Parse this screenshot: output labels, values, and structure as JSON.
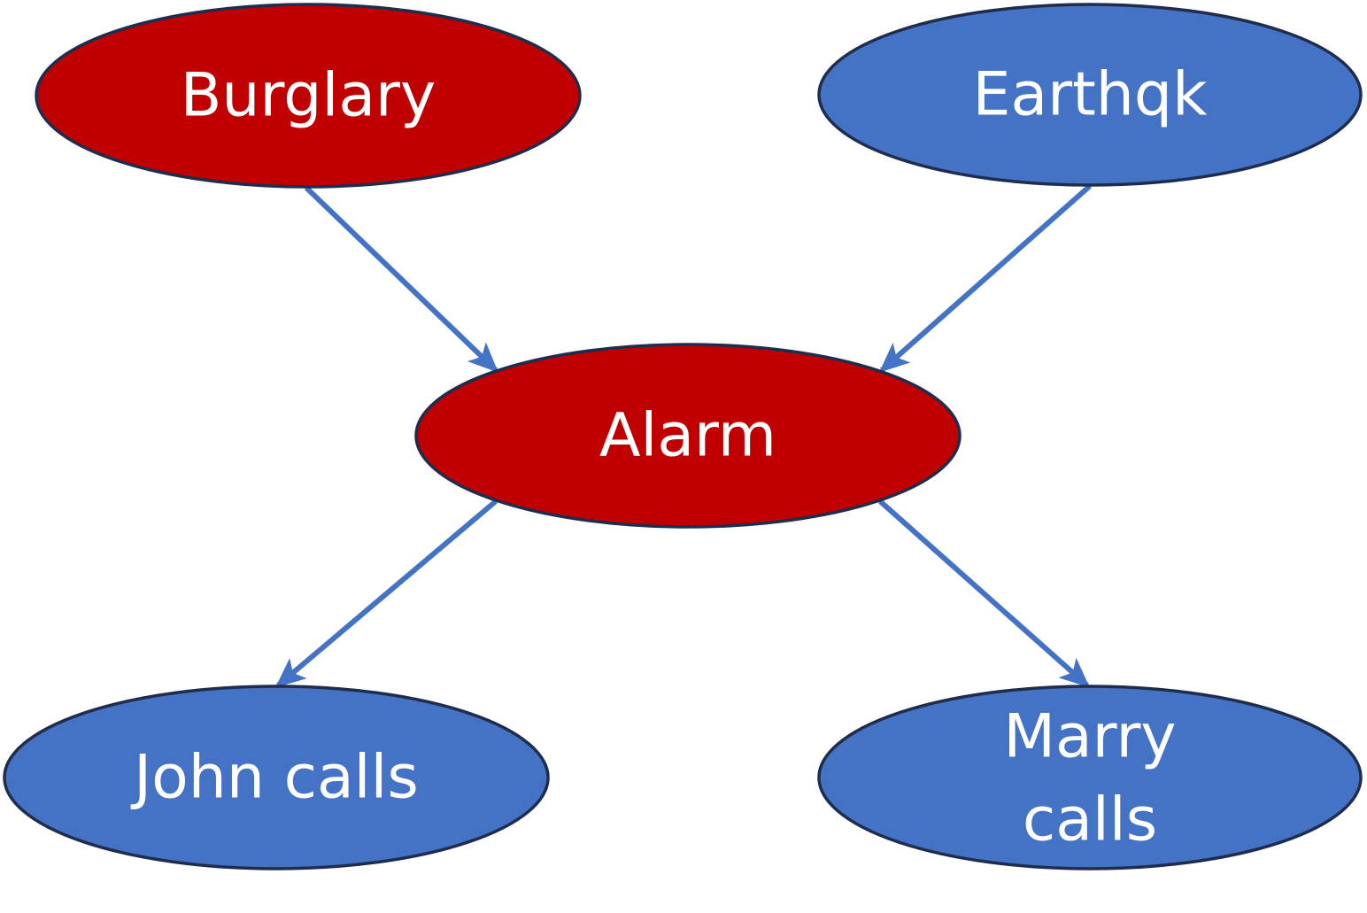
{
  "colors": {
    "observed": "#c00000",
    "unobserved": "#4472c4",
    "edge": "#4472c4",
    "outline": "#1f2d4d",
    "label": "#ffffff"
  },
  "nodes": {
    "burglary": {
      "label": "Burglary",
      "state": "observed"
    },
    "earthquake": {
      "label": "Earthqk",
      "state": "unobserved"
    },
    "alarm": {
      "label": "Alarm",
      "state": "observed"
    },
    "john_calls": {
      "label": "John calls",
      "state": "unobserved"
    },
    "marry_calls": {
      "label_line1": "Marry",
      "label_line2": "calls",
      "state": "unobserved"
    }
  },
  "edges": [
    {
      "from": "burglary",
      "to": "alarm"
    },
    {
      "from": "earthquake",
      "to": "alarm"
    },
    {
      "from": "alarm",
      "to": "john_calls"
    },
    {
      "from": "alarm",
      "to": "marry_calls"
    }
  ]
}
